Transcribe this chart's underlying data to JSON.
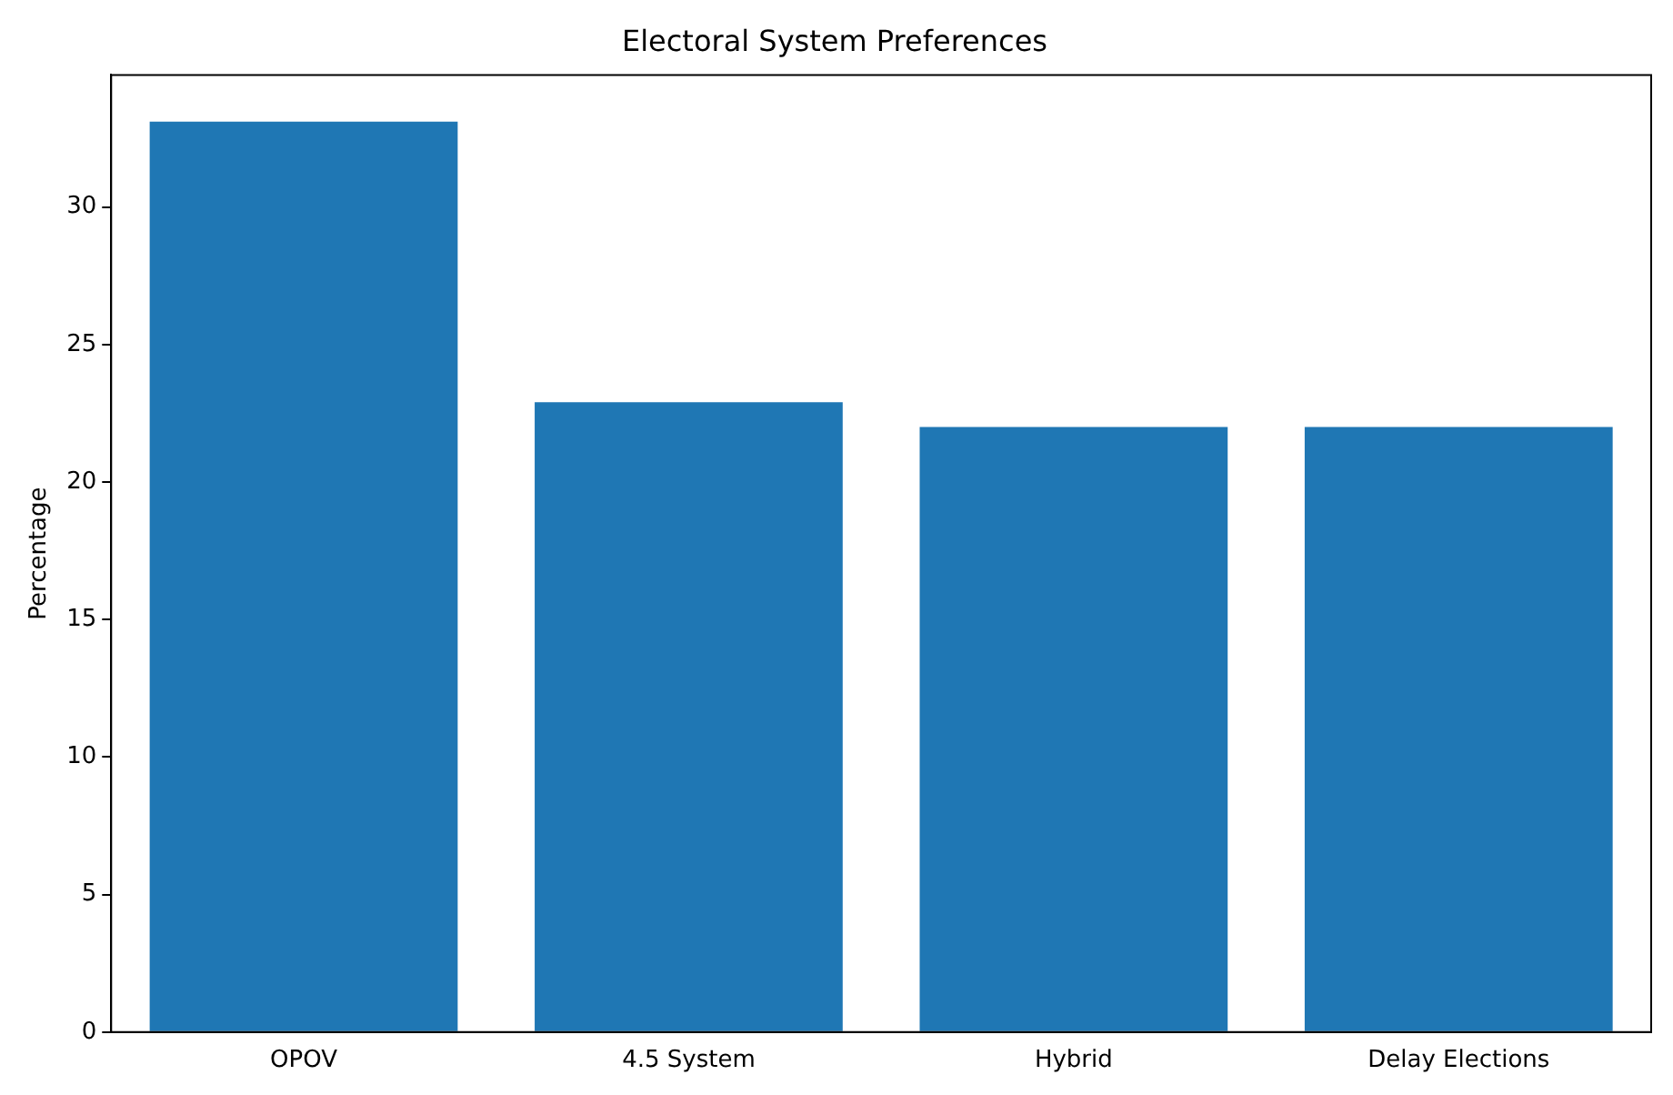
{
  "chart_data": {
    "type": "bar",
    "title": "Electoral System Preferences",
    "ylabel": "Percentage",
    "categories": [
      "OPOV",
      "4.5 System",
      "Hybrid",
      "Delay Elections"
    ],
    "values": [
      33.1,
      22.9,
      22.0,
      22.0
    ],
    "color": "#1f77b4",
    "ylim": [
      0,
      34.8
    ],
    "yticks": [
      0,
      5,
      10,
      15,
      20,
      25,
      30
    ],
    "grid": false,
    "legend": false
  }
}
